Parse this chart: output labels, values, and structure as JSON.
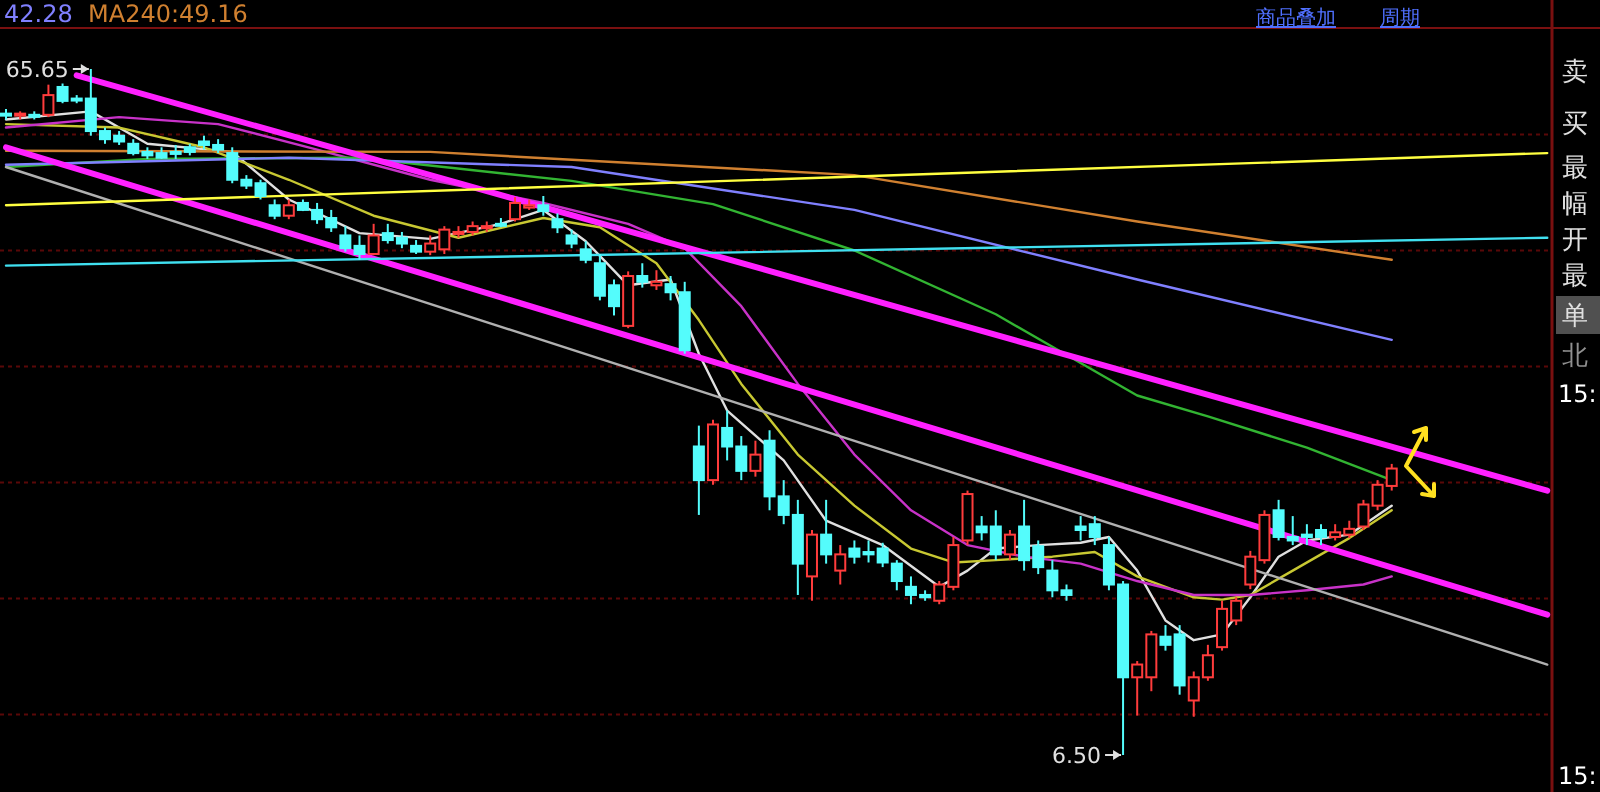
{
  "chart_data": {
    "type": "candlestick",
    "categories": [
      null,
      null,
      null,
      null,
      null,
      null,
      null,
      null,
      null,
      null,
      null,
      null,
      null,
      null,
      null,
      null,
      null,
      null,
      null,
      null,
      null,
      null,
      null,
      null,
      null,
      null,
      null,
      null,
      null,
      null,
      null,
      null,
      null,
      null,
      null,
      null,
      null,
      null,
      null,
      null,
      null,
      null,
      null,
      null,
      null,
      null,
      null,
      null,
      null,
      null,
      null,
      null,
      null,
      null,
      null,
      null,
      null,
      null,
      null,
      null,
      null,
      null,
      null,
      null,
      null,
      null,
      null,
      null,
      null,
      null,
      null,
      null,
      null,
      null,
      null,
      null,
      null,
      null,
      null,
      null,
      null,
      null,
      null,
      null,
      null,
      null,
      null,
      null,
      null,
      null,
      null,
      null,
      null,
      null,
      null,
      null,
      null,
      null,
      null,
      null,
      null,
      null,
      null,
      null,
      null,
      null,
      null,
      null,
      null,
      null
    ],
    "ohlc": [
      [
        61.8,
        62.2,
        61.3,
        61.7
      ],
      [
        61.7,
        62.0,
        61.3,
        61.8
      ],
      [
        61.7,
        62.0,
        61.3,
        61.7
      ],
      [
        61.7,
        64.3,
        61.5,
        63.4
      ],
      [
        64.1,
        64.4,
        62.7,
        62.9
      ],
      [
        63.1,
        63.4,
        62.7,
        63.1
      ],
      [
        63.1,
        65.65,
        59.9,
        60.3
      ],
      [
        60.3,
        60.6,
        59.2,
        59.6
      ],
      [
        59.9,
        60.3,
        59.1,
        59.4
      ],
      [
        59.2,
        59.6,
        58.2,
        58.4
      ],
      [
        58.5,
        58.9,
        57.9,
        58.2
      ],
      [
        58.4,
        58.9,
        57.9,
        58.0
      ],
      [
        58.5,
        59.1,
        57.9,
        58.4
      ],
      [
        58.9,
        59.2,
        58.2,
        58.5
      ],
      [
        59.4,
        59.9,
        58.7,
        59.1
      ],
      [
        59.1,
        59.6,
        58.4,
        58.7
      ],
      [
        58.4,
        58.9,
        55.8,
        56.1
      ],
      [
        56.1,
        56.5,
        55.3,
        55.6
      ],
      [
        55.8,
        56.1,
        54.4,
        54.7
      ],
      [
        53.9,
        54.4,
        52.7,
        53.0
      ],
      [
        53.0,
        54.4,
        52.7,
        53.9
      ],
      [
        54.1,
        54.4,
        53.4,
        53.5
      ],
      [
        53.5,
        54.1,
        52.3,
        52.7
      ],
      [
        52.8,
        53.5,
        51.6,
        52.0
      ],
      [
        51.3,
        52.1,
        49.9,
        50.2
      ],
      [
        50.4,
        51.3,
        49.2,
        49.7
      ],
      [
        49.7,
        52.3,
        49.6,
        51.3
      ],
      [
        51.5,
        52.3,
        50.6,
        50.9
      ],
      [
        51.1,
        51.6,
        50.2,
        50.6
      ],
      [
        50.4,
        50.9,
        49.7,
        49.9
      ],
      [
        49.9,
        51.3,
        49.6,
        50.6
      ],
      [
        50.1,
        52.1,
        49.7,
        51.8
      ],
      [
        51.5,
        52.1,
        51.1,
        51.6
      ],
      [
        51.6,
        52.5,
        51.3,
        52.1
      ],
      [
        52.0,
        52.5,
        51.6,
        52.1
      ],
      [
        52.3,
        52.8,
        52.0,
        52.3
      ],
      [
        52.7,
        54.6,
        52.5,
        54.1
      ],
      [
        53.7,
        54.4,
        53.5,
        53.9
      ],
      [
        53.9,
        54.7,
        53.0,
        53.4
      ],
      [
        52.7,
        53.2,
        51.5,
        52.0
      ],
      [
        51.3,
        51.8,
        50.2,
        50.6
      ],
      [
        50.1,
        50.8,
        48.9,
        49.2
      ],
      [
        48.9,
        49.7,
        45.7,
        46.1
      ],
      [
        47.0,
        47.5,
        44.4,
        45.2
      ],
      [
        43.5,
        48.2,
        43.3,
        47.8
      ],
      [
        47.8,
        48.9,
        46.8,
        47.3
      ],
      [
        47.0,
        48.3,
        46.6,
        47.3
      ],
      [
        47.1,
        47.8,
        45.7,
        46.4
      ],
      [
        46.4,
        47.3,
        41.1,
        41.4
      ],
      [
        33.1,
        34.9,
        27.2,
        30.2
      ],
      [
        30.2,
        35.4,
        29.8,
        35.0
      ],
      [
        34.7,
        36.2,
        31.9,
        33.1
      ],
      [
        33.1,
        34.0,
        30.2,
        31.0
      ],
      [
        31.0,
        33.6,
        30.5,
        32.4
      ],
      [
        33.6,
        34.5,
        27.6,
        28.8
      ],
      [
        28.8,
        30.2,
        26.4,
        27.2
      ],
      [
        27.2,
        28.5,
        20.3,
        23.0
      ],
      [
        21.9,
        25.9,
        19.8,
        25.5
      ],
      [
        25.5,
        28.5,
        23.0,
        23.8
      ],
      [
        22.4,
        24.6,
        21.2,
        23.8
      ],
      [
        24.3,
        25.0,
        23.0,
        23.6
      ],
      [
        24.0,
        25.0,
        23.1,
        23.8
      ],
      [
        24.3,
        24.8,
        22.7,
        23.1
      ],
      [
        23.0,
        23.3,
        20.7,
        21.5
      ],
      [
        21.0,
        21.9,
        19.5,
        20.3
      ],
      [
        20.3,
        20.7,
        19.8,
        20.1
      ],
      [
        19.8,
        21.5,
        19.5,
        21.2
      ],
      [
        21.0,
        25.3,
        20.7,
        24.6
      ],
      [
        25.0,
        29.3,
        24.6,
        29.0
      ],
      [
        26.2,
        27.1,
        25.0,
        25.7
      ],
      [
        26.2,
        27.6,
        23.3,
        23.8
      ],
      [
        23.8,
        25.9,
        23.3,
        25.5
      ],
      [
        26.2,
        28.5,
        22.4,
        23.3
      ],
      [
        24.5,
        25.0,
        22.1,
        22.7
      ],
      [
        22.4,
        23.3,
        20.1,
        20.7
      ],
      [
        20.7,
        21.2,
        19.8,
        20.3
      ],
      [
        26.2,
        27.1,
        25.0,
        25.9
      ],
      [
        26.4,
        27.1,
        24.6,
        25.3
      ],
      [
        24.6,
        25.3,
        20.7,
        21.2
      ],
      [
        21.2,
        21.5,
        6.5,
        13.2
      ],
      [
        13.2,
        14.6,
        9.9,
        14.3
      ],
      [
        13.2,
        17.2,
        12.0,
        16.9
      ],
      [
        16.7,
        17.7,
        15.5,
        16.0
      ],
      [
        16.9,
        17.7,
        11.7,
        12.5
      ],
      [
        11.2,
        13.7,
        9.8,
        13.2
      ],
      [
        13.2,
        16.0,
        12.9,
        15.1
      ],
      [
        15.8,
        19.8,
        15.5,
        19.1
      ],
      [
        18.1,
        20.1,
        17.7,
        19.8
      ],
      [
        21.2,
        24.1,
        20.8,
        23.6
      ],
      [
        23.3,
        27.6,
        23.0,
        27.2
      ],
      [
        27.6,
        28.5,
        25.0,
        25.3
      ],
      [
        25.3,
        27.1,
        24.6,
        25.0
      ],
      [
        25.5,
        26.4,
        24.6,
        25.3
      ],
      [
        25.9,
        26.4,
        24.6,
        25.3
      ],
      [
        25.3,
        26.4,
        25.0,
        25.7
      ],
      [
        25.5,
        26.7,
        25.2,
        26.0
      ],
      [
        26.2,
        28.5,
        25.9,
        28.1
      ],
      [
        28.0,
        30.2,
        27.6,
        29.8
      ],
      [
        29.7,
        31.6,
        29.3,
        31.2
      ],
      null,
      null,
      null,
      null,
      null,
      null,
      null,
      null,
      null,
      null,
      null
    ],
    "yticks": [
      {
        "value": 10,
        "label": null
      },
      {
        "value": 20,
        "label": null
      },
      {
        "value": 30,
        "label": null
      },
      {
        "value": 40,
        "label": null
      },
      {
        "value": 50,
        "label": null
      },
      {
        "value": 60,
        "label": null
      }
    ],
    "grid": "y",
    "series": [
      {
        "type": "line",
        "color": "#e0e0e0",
        "values": [
          61.3,
          null,
          null,
          null,
          null,
          null,
          62.0,
          null,
          null,
          null,
          59.2,
          null,
          null,
          null,
          null,
          null,
          58.5,
          null,
          null,
          null,
          54.4,
          null,
          null,
          null,
          null,
          51.5,
          null,
          null,
          null,
          null,
          51.0,
          null,
          null,
          null,
          null,
          52.3,
          null,
          null,
          53.5,
          null,
          null,
          50.8,
          null,
          null,
          47.0,
          null,
          null,
          47.5,
          null,
          41.1,
          null,
          36.2,
          null,
          null,
          null,
          31.9,
          null,
          null,
          26.7,
          null,
          null,
          null,
          24.6,
          null,
          null,
          null,
          21.0,
          null,
          22.4,
          null,
          24.3,
          null,
          null,
          24.6,
          null,
          null,
          24.8,
          null,
          25.3,
          null,
          22.4,
          null,
          18.1,
          null,
          16.4,
          null,
          16.9,
          null,
          20.1,
          null,
          23.6,
          null,
          25.0,
          null,
          null,
          25.5,
          null,
          null,
          28.0,
          null,
          null,
          null,
          null,
          null,
          null,
          null,
          null,
          null,
          null,
          null
        ]
      },
      {
        "type": "line",
        "color": "#c8c832",
        "values": [
          60.9,
          null,
          null,
          null,
          null,
          null,
          null,
          null,
          60.6,
          null,
          null,
          null,
          null,
          null,
          58.9,
          null,
          null,
          null,
          null,
          null,
          56.1,
          null,
          null,
          null,
          null,
          null,
          53.0,
          null,
          null,
          null,
          null,
          null,
          51.1,
          null,
          null,
          null,
          null,
          null,
          52.8,
          null,
          null,
          null,
          52.0,
          null,
          null,
          null,
          48.9,
          null,
          null,
          44.0,
          null,
          null,
          38.5,
          null,
          null,
          null,
          32.4,
          null,
          null,
          null,
          28.0,
          null,
          null,
          null,
          24.3,
          null,
          null,
          23.1,
          null,
          null,
          23.3,
          null,
          null,
          null,
          23.6,
          null,
          null,
          24.0,
          null,
          null,
          21.9,
          null,
          null,
          null,
          20.1,
          null,
          19.9,
          null,
          20.3,
          null,
          null,
          22.4,
          null,
          null,
          null,
          25.2,
          null,
          null,
          27.6,
          null,
          null,
          null,
          null,
          null,
          null,
          null,
          null,
          null,
          null,
          null
        ]
      },
      {
        "type": "line",
        "color": "#c832c8",
        "values": [
          60.6,
          null,
          null,
          null,
          null,
          null,
          null,
          null,
          61.5,
          null,
          null,
          null,
          null,
          null,
          null,
          60.9,
          null,
          null,
          null,
          null,
          null,
          null,
          58.7,
          null,
          null,
          null,
          null,
          null,
          null,
          null,
          56.1,
          null,
          null,
          null,
          null,
          null,
          null,
          null,
          54.1,
          null,
          null,
          null,
          null,
          null,
          52.3,
          null,
          null,
          null,
          50.2,
          null,
          null,
          null,
          45.2,
          null,
          null,
          null,
          38.5,
          null,
          null,
          null,
          32.4,
          null,
          null,
          null,
          27.6,
          null,
          null,
          null,
          24.6,
          null,
          null,
          null,
          23.6,
          null,
          null,
          null,
          23.0,
          null,
          null,
          null,
          21.5,
          null,
          null,
          null,
          20.3,
          null,
          null,
          null,
          20.3,
          null,
          null,
          null,
          20.7,
          null,
          null,
          null,
          21.2,
          null,
          21.9,
          null,
          null,
          null,
          null,
          null,
          null,
          null,
          null,
          null,
          null,
          null
        ]
      },
      {
        "type": "line",
        "color": "#32b432",
        "values": [
          57.2,
          null,
          null,
          null,
          null,
          null,
          null,
          null,
          null,
          null,
          57.9,
          null,
          null,
          null,
          null,
          null,
          null,
          null,
          null,
          null,
          null,
          null,
          null,
          null,
          null,
          58.0,
          null,
          null,
          null,
          null,
          null,
          null,
          null,
          null,
          null,
          null,
          null,
          null,
          null,
          null,
          56.0,
          null,
          null,
          null,
          null,
          null,
          null,
          null,
          null,
          null,
          54.0,
          null,
          null,
          null,
          null,
          null,
          null,
          null,
          null,
          null,
          50.0,
          null,
          null,
          null,
          null,
          null,
          null,
          null,
          null,
          null,
          44.5,
          null,
          null,
          null,
          null,
          null,
          null,
          null,
          null,
          null,
          37.5,
          null,
          null,
          null,
          null,
          35.7,
          null,
          null,
          null,
          null,
          null,
          null,
          33.0,
          null,
          null,
          null,
          null,
          null,
          30.2,
          null,
          null,
          null,
          null,
          null,
          null,
          null,
          null,
          null,
          null,
          null
        ]
      },
      {
        "type": "line",
        "color": "#8080ff",
        "values": [
          57.4,
          null,
          null,
          null,
          null,
          null,
          null,
          null,
          null,
          null,
          null,
          null,
          null,
          null,
          null,
          null,
          null,
          null,
          null,
          null,
          58.0,
          null,
          null,
          null,
          null,
          null,
          null,
          null,
          null,
          null,
          null,
          null,
          null,
          null,
          null,
          null,
          null,
          null,
          null,
          null,
          57.2,
          null,
          null,
          null,
          null,
          null,
          null,
          null,
          null,
          null,
          null,
          null,
          null,
          null,
          null,
          null,
          null,
          null,
          null,
          null,
          53.5,
          null,
          null,
          null,
          null,
          null,
          null,
          null,
          null,
          null,
          null,
          null,
          null,
          null,
          null,
          null,
          null,
          null,
          null,
          null,
          47.5,
          null,
          null,
          null,
          null,
          null,
          null,
          null,
          null,
          null,
          null,
          null,
          null,
          null,
          null,
          null,
          null,
          null,
          42.3,
          null,
          null,
          null,
          null,
          null,
          null,
          null,
          null,
          null,
          null,
          null
        ]
      },
      {
        "type": "line",
        "color": "#d08030",
        "values": [
          58.6,
          null,
          null,
          null,
          null,
          null,
          null,
          null,
          null,
          null,
          null,
          null,
          null,
          null,
          null,
          null,
          null,
          null,
          null,
          null,
          null,
          null,
          null,
          null,
          null,
          null,
          null,
          null,
          null,
          null,
          58.5,
          null,
          null,
          null,
          null,
          null,
          null,
          null,
          null,
          null,
          null,
          null,
          null,
          null,
          null,
          null,
          null,
          null,
          null,
          null,
          null,
          null,
          null,
          null,
          null,
          null,
          null,
          null,
          null,
          null,
          56.5,
          null,
          null,
          null,
          null,
          null,
          null,
          null,
          null,
          null,
          null,
          null,
          null,
          null,
          null,
          null,
          null,
          null,
          null,
          null,
          52.5,
          null,
          null,
          null,
          null,
          null,
          null,
          null,
          null,
          null,
          null,
          null,
          null,
          null,
          null,
          null,
          null,
          null,
          49.2,
          null,
          null,
          null,
          null,
          null,
          null,
          null,
          null,
          null,
          null,
          null
        ]
      },
      {
        "type": "line",
        "color": "#ff20ff",
        "values": [
          null,
          null,
          null,
          null,
          null,
          65.1,
          null,
          null,
          null,
          null,
          null,
          null,
          null,
          null,
          null,
          null,
          null,
          null,
          null,
          null,
          null,
          null,
          null,
          null,
          null,
          null,
          null,
          null,
          null,
          null,
          null,
          null,
          null,
          null,
          null,
          null,
          null,
          null,
          null,
          null,
          null,
          null,
          null,
          null,
          null,
          null,
          null,
          null,
          null,
          null,
          null,
          null,
          null,
          null,
          null,
          null,
          null,
          null,
          null,
          null,
          null,
          null,
          null,
          null,
          null,
          null,
          null,
          null,
          null,
          null,
          null,
          null,
          null,
          null,
          null,
          null,
          null,
          null,
          null,
          null,
          null,
          null,
          null,
          null,
          null,
          null,
          null,
          null,
          null,
          null,
          null,
          null,
          null,
          null,
          null,
          null,
          null,
          null,
          null,
          null,
          null,
          null,
          null,
          null,
          null,
          null,
          null,
          null,
          null,
          29.3
        ]
      },
      {
        "type": "line",
        "color": "#ff20ff",
        "values": [
          58.9,
          null,
          null,
          null,
          null,
          null,
          null,
          null,
          null,
          null,
          null,
          null,
          null,
          null,
          null,
          null,
          null,
          null,
          null,
          null,
          null,
          null,
          null,
          null,
          null,
          null,
          null,
          null,
          null,
          null,
          null,
          null,
          null,
          null,
          null,
          null,
          null,
          null,
          null,
          null,
          null,
          null,
          null,
          null,
          null,
          null,
          null,
          null,
          null,
          null,
          null,
          null,
          null,
          null,
          null,
          null,
          null,
          null,
          null,
          null,
          null,
          null,
          null,
          null,
          null,
          null,
          null,
          null,
          null,
          null,
          null,
          null,
          null,
          null,
          null,
          null,
          null,
          null,
          null,
          null,
          null,
          null,
          null,
          null,
          null,
          null,
          null,
          null,
          null,
          null,
          null,
          null,
          null,
          null,
          null,
          null,
          null,
          null,
          null,
          null,
          null,
          null,
          null,
          null,
          null,
          null,
          null,
          null,
          null,
          18.6
        ]
      },
      {
        "type": "line",
        "color": "#b0b0b0",
        "values": [
          57.2,
          null,
          null,
          null,
          null,
          null,
          null,
          null,
          null,
          null,
          null,
          null,
          null,
          null,
          null,
          null,
          null,
          null,
          null,
          null,
          null,
          null,
          null,
          null,
          null,
          null,
          null,
          null,
          null,
          null,
          null,
          null,
          null,
          null,
          null,
          null,
          null,
          null,
          null,
          null,
          null,
          null,
          null,
          null,
          null,
          null,
          null,
          null,
          null,
          null,
          null,
          null,
          null,
          null,
          null,
          null,
          null,
          null,
          null,
          null,
          null,
          null,
          null,
          null,
          null,
          null,
          null,
          null,
          null,
          null,
          null,
          null,
          null,
          null,
          null,
          null,
          null,
          null,
          null,
          null,
          null,
          null,
          null,
          null,
          null,
          null,
          null,
          null,
          null,
          null,
          null,
          null,
          null,
          null,
          null,
          null,
          null,
          null,
          null,
          null,
          null,
          null,
          null,
          null,
          null,
          null,
          null,
          null,
          null,
          14.3
        ]
      },
      {
        "type": "line",
        "color": "#ffff40",
        "values": [
          53.9,
          null,
          null,
          null,
          null,
          null,
          null,
          null,
          null,
          null,
          null,
          null,
          null,
          null,
          null,
          null,
          null,
          null,
          null,
          null,
          null,
          null,
          null,
          null,
          null,
          null,
          null,
          null,
          null,
          null,
          null,
          null,
          null,
          null,
          null,
          null,
          null,
          null,
          null,
          null,
          null,
          null,
          null,
          null,
          null,
          null,
          null,
          null,
          null,
          null,
          null,
          null,
          null,
          null,
          null,
          null,
          null,
          null,
          null,
          null,
          null,
          null,
          null,
          null,
          null,
          null,
          null,
          null,
          null,
          null,
          null,
          null,
          null,
          null,
          null,
          null,
          null,
          null,
          null,
          null,
          null,
          null,
          null,
          null,
          null,
          null,
          null,
          null,
          null,
          null,
          null,
          null,
          null,
          null,
          null,
          null,
          null,
          null,
          null,
          null,
          null,
          null,
          null,
          null,
          null,
          null,
          null,
          null,
          null,
          58.4
        ]
      },
      {
        "type": "line",
        "color": "#40e0f0",
        "values": [
          48.7,
          null,
          null,
          null,
          null,
          null,
          null,
          null,
          null,
          null,
          null,
          null,
          null,
          null,
          null,
          null,
          null,
          null,
          null,
          null,
          null,
          null,
          null,
          null,
          null,
          null,
          null,
          null,
          null,
          null,
          null,
          null,
          null,
          null,
          null,
          null,
          null,
          null,
          null,
          null,
          null,
          null,
          null,
          null,
          null,
          null,
          null,
          null,
          null,
          null,
          null,
          null,
          null,
          null,
          null,
          null,
          null,
          null,
          null,
          null,
          null,
          null,
          null,
          null,
          null,
          null,
          null,
          null,
          null,
          null,
          null,
          null,
          null,
          null,
          null,
          null,
          null,
          null,
          null,
          null,
          null,
          null,
          null,
          null,
          null,
          null,
          null,
          null,
          null,
          null,
          null,
          null,
          null,
          null,
          null,
          null,
          null,
          null,
          null,
          null,
          null,
          null,
          null,
          null,
          null,
          null,
          null,
          null,
          null,
          51.1
        ]
      }
    ],
    "annotations": [
      "65.65",
      "6.50",
      "42.28",
      "MA240:49.16",
      "商品叠加",
      "周期",
      "卖",
      "买",
      "最",
      "幅",
      "开",
      "最",
      "单",
      "北",
      "15:",
      "15:"
    ]
  }
}
